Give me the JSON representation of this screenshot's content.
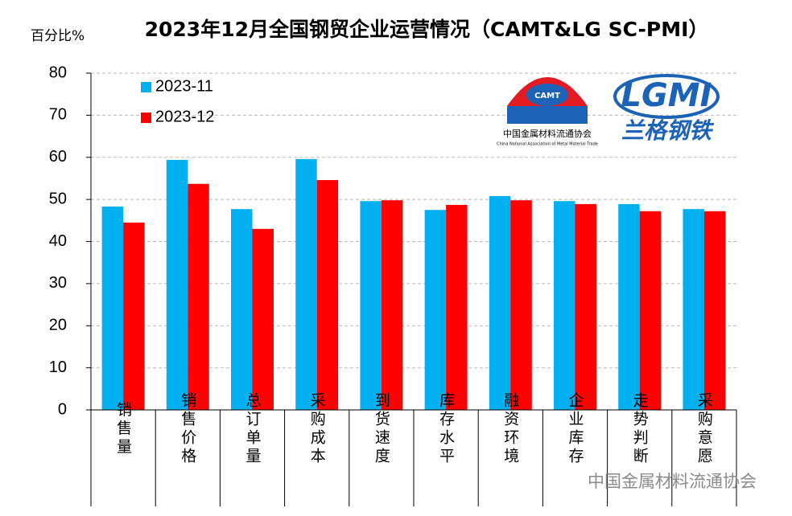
{
  "chart_data": {
    "type": "bar",
    "title": "2023年12月全国钢贸企业运营情况（CAMT&LG SC-PMI）",
    "y_label": "百分比%",
    "categories": [
      "销售量",
      "销售价格",
      "总订单量",
      "采购成本",
      "到货速度",
      "库存水平",
      "融资环境",
      "企业库存",
      "走势判断",
      "采购意愿"
    ],
    "series": [
      {
        "name": "2023-11",
        "color": "#00b0f0",
        "values": [
          48.3,
          59.4,
          47.7,
          59.6,
          49.6,
          47.5,
          50.8,
          49.6,
          48.9,
          47.7
        ]
      },
      {
        "name": "2023-12",
        "color": "#ff0000",
        "values": [
          44.5,
          53.7,
          43.0,
          54.6,
          49.8,
          48.7,
          49.8,
          48.9,
          47.2,
          47.2
        ]
      }
    ],
    "ylim": [
      0,
      80
    ],
    "yticks": [
      0,
      10,
      20,
      30,
      40,
      50,
      60,
      70,
      80
    ],
    "grid": true,
    "logos": {
      "camt": "CAMT",
      "camt_name": "中国金属材料流通协会",
      "camt_english": "China National Association of Metal Material Trade",
      "lgmi": "LGMI",
      "lg_name": "兰格钢铁"
    },
    "watermark": "中国金属材料流通协会"
  }
}
